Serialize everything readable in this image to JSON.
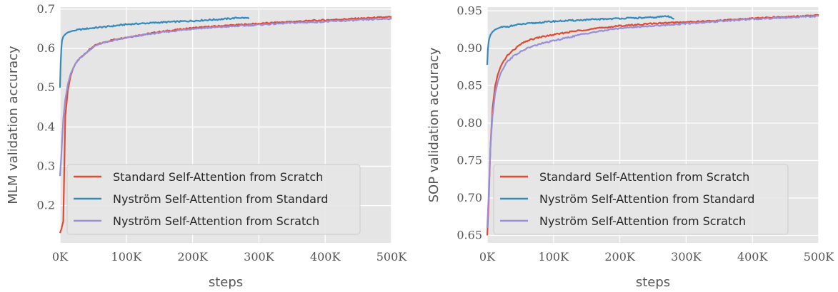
{
  "chart_data": [
    {
      "type": "line",
      "xlabel": "steps",
      "ylabel": "MLM validation accuracy",
      "xlim": [
        0,
        500000
      ],
      "ylim": [
        0.105,
        0.705
      ],
      "xticks": [
        0,
        100000,
        200000,
        300000,
        400000,
        500000
      ],
      "xtick_labels": [
        "0K",
        "100K",
        "200K",
        "300K",
        "400K",
        "500K"
      ],
      "yticks": [
        0.2,
        0.3,
        0.4,
        0.5,
        0.6,
        0.7
      ],
      "ytick_labels": [
        "0.2",
        "0.3",
        "0.4",
        "0.5",
        "0.6",
        "0.7"
      ],
      "grid": true,
      "legend_position": "lower-left",
      "series": [
        {
          "name": "Standard Self-Attention from Scratch",
          "color": "#e24a33",
          "x": [
            0,
            2000,
            5000,
            8000,
            12000,
            16000,
            20000,
            25000,
            30000,
            40000,
            50000,
            60000,
            80000,
            100000,
            125000,
            150000,
            200000,
            250000,
            300000,
            350000,
            400000,
            450000,
            500000
          ],
          "y": [
            0.13,
            0.14,
            0.16,
            0.43,
            0.495,
            0.53,
            0.55,
            0.565,
            0.575,
            0.59,
            0.605,
            0.612,
            0.622,
            0.628,
            0.635,
            0.642,
            0.652,
            0.658,
            0.663,
            0.668,
            0.672,
            0.676,
            0.68
          ]
        },
        {
          "name": "Nyström Self-Attention from Standard",
          "color": "#348abd",
          "x": [
            0,
            1000,
            2000,
            3000,
            5000,
            8000,
            12000,
            20000,
            30000,
            50000,
            75000,
            100000,
            150000,
            200000,
            250000,
            270000,
            285000
          ],
          "y": [
            0.5,
            0.56,
            0.6,
            0.62,
            0.63,
            0.636,
            0.641,
            0.645,
            0.648,
            0.652,
            0.656,
            0.661,
            0.666,
            0.67,
            0.675,
            0.678,
            0.677
          ]
        },
        {
          "name": "Nyström Self-Attention from Scratch",
          "color": "#988ed5",
          "x": [
            0,
            2000,
            5000,
            8000,
            12000,
            16000,
            20000,
            25000,
            30000,
            40000,
            50000,
            60000,
            80000,
            100000,
            125000,
            150000,
            200000,
            250000,
            300000,
            350000,
            400000,
            450000,
            500000
          ],
          "y": [
            0.275,
            0.33,
            0.42,
            0.47,
            0.51,
            0.535,
            0.55,
            0.565,
            0.575,
            0.59,
            0.603,
            0.612,
            0.62,
            0.627,
            0.634,
            0.64,
            0.65,
            0.655,
            0.66,
            0.665,
            0.668,
            0.672,
            0.676
          ]
        }
      ]
    },
    {
      "type": "line",
      "xlabel": "steps",
      "ylabel": "SOP validation accuracy",
      "xlim": [
        0,
        500000
      ],
      "ylim": [
        0.64,
        0.955
      ],
      "xticks": [
        0,
        100000,
        200000,
        300000,
        400000,
        500000
      ],
      "xtick_labels": [
        "0K",
        "100K",
        "200K",
        "300K",
        "400K",
        "500K"
      ],
      "yticks": [
        0.65,
        0.7,
        0.75,
        0.8,
        0.85,
        0.9,
        0.95
      ],
      "ytick_labels": [
        "0.65",
        "0.70",
        "0.75",
        "0.80",
        "0.85",
        "0.90",
        "0.95"
      ],
      "grid": true,
      "legend_position": "lower-left",
      "series": [
        {
          "name": "Standard Self-Attention from Scratch",
          "color": "#e24a33",
          "x": [
            0,
            2000,
            5000,
            8000,
            12000,
            16000,
            20000,
            25000,
            30000,
            40000,
            50000,
            60000,
            80000,
            100000,
            125000,
            150000,
            200000,
            250000,
            300000,
            350000,
            400000,
            450000,
            500000
          ],
          "y": [
            0.65,
            0.69,
            0.77,
            0.82,
            0.85,
            0.865,
            0.875,
            0.883,
            0.89,
            0.898,
            0.905,
            0.91,
            0.915,
            0.918,
            0.922,
            0.925,
            0.93,
            0.933,
            0.935,
            0.937,
            0.94,
            0.942,
            0.944
          ]
        },
        {
          "name": "Nyström Self-Attention from Standard",
          "color": "#348abd",
          "x": [
            0,
            1000,
            2000,
            3000,
            5000,
            8000,
            12000,
            20000,
            30000,
            50000,
            75000,
            100000,
            150000,
            200000,
            250000,
            270000,
            282000
          ],
          "y": [
            0.878,
            0.898,
            0.908,
            0.913,
            0.918,
            0.922,
            0.925,
            0.928,
            0.929,
            0.932,
            0.934,
            0.936,
            0.938,
            0.94,
            0.941,
            0.943,
            0.94
          ]
        },
        {
          "name": "Nyström Self-Attention from Scratch",
          "color": "#988ed5",
          "x": [
            0,
            2000,
            5000,
            8000,
            12000,
            16000,
            20000,
            25000,
            30000,
            40000,
            50000,
            60000,
            80000,
            100000,
            125000,
            150000,
            200000,
            250000,
            300000,
            350000,
            400000,
            450000,
            500000
          ],
          "y": [
            0.66,
            0.7,
            0.77,
            0.81,
            0.84,
            0.855,
            0.866,
            0.875,
            0.882,
            0.89,
            0.895,
            0.9,
            0.906,
            0.91,
            0.915,
            0.92,
            0.927,
            0.93,
            0.933,
            0.936,
            0.939,
            0.941,
            0.943
          ]
        }
      ]
    }
  ]
}
